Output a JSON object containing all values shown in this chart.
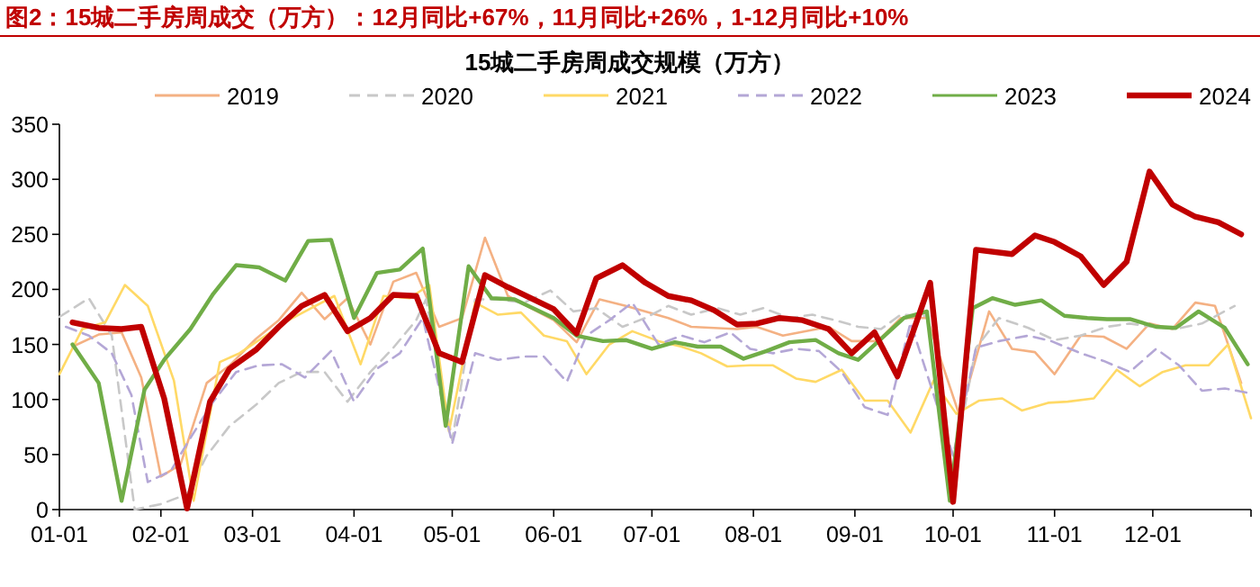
{
  "chart_data": {
    "type": "line",
    "title": "图2：15城二手房周成交（万方）：12月同比+67%，11月同比+26%，1-12月同比+10%",
    "subtitle": "15城二手房周成交规模（万方）",
    "xlim": [
      "--01-01",
      "--12-31"
    ],
    "ylim": [
      0,
      350
    ],
    "yticks": [
      0,
      50,
      100,
      150,
      200,
      250,
      300,
      350
    ],
    "xticks": [
      {
        "value": "--01-01",
        "label": "01-01"
      },
      {
        "value": "--02-01",
        "label": "02-01"
      },
      {
        "value": "--03-01",
        "label": "03-01"
      },
      {
        "value": "--04-01",
        "label": "04-01"
      },
      {
        "value": "--05-01",
        "label": "05-01"
      },
      {
        "value": "--06-01",
        "label": "06-01"
      },
      {
        "value": "--07-01",
        "label": "07-01"
      },
      {
        "value": "--08-01",
        "label": "08-01"
      },
      {
        "value": "--09-01",
        "label": "09-01"
      },
      {
        "value": "--10-01",
        "label": "10-01"
      },
      {
        "value": "--11-01",
        "label": "11-01"
      },
      {
        "value": "--12-01",
        "label": "12-01"
      },
      {
        "value": "--12-31",
        "label": null
      }
    ],
    "legend": "top",
    "grid": false,
    "series": [
      {
        "name": "2019",
        "color": "#f4b183",
        "line_style": "solid",
        "x": [
          "--01-05",
          "--01-13",
          "--01-20",
          "--01-26",
          "--02-01",
          "--02-07",
          "--02-15",
          "--02-22",
          "--03-02",
          "--03-09",
          "--03-16",
          "--03-23",
          "--03-30",
          "--04-06",
          "--04-13",
          "--04-20",
          "--04-27",
          "--05-04",
          "--05-11",
          "--05-18",
          "--06-01",
          "--06-08",
          "--06-15",
          "--06-23",
          "--07-06",
          "--07-13",
          "--07-27",
          "--08-02",
          "--08-10",
          "--08-24",
          "--08-31",
          "--09-08",
          "--09-15",
          "--09-23",
          "--10-03",
          "--10-12",
          "--10-19",
          "--10-26",
          "--11-01",
          "--11-09",
          "--11-16",
          "--11-23",
          "--11-30",
          "--12-07",
          "--12-14",
          "--12-20",
          "--12-28"
        ],
        "values": [
          148,
          159,
          161,
          120,
          30,
          41,
          115,
          131,
          155,
          172,
          197,
          173,
          192,
          150,
          207,
          215,
          166,
          174,
          247,
          194,
          172,
          152,
          191,
          185,
          174,
          166,
          164,
          166,
          158,
          166,
          153,
          153,
          174,
          174,
          85,
          180,
          146,
          143,
          123,
          158,
          157,
          146,
          169,
          164,
          188,
          185,
          115
        ]
      },
      {
        "name": "2020",
        "color": "#c8c8c8",
        "line_style": "dashed",
        "x": [
          "--01-01",
          "--01-10",
          "--01-17",
          "--01-24",
          "--02-01",
          "--02-09",
          "--02-15",
          "--02-22",
          "--03-02",
          "--03-09",
          "--03-16",
          "--03-23",
          "--03-30",
          "--04-06",
          "--04-13",
          "--04-20",
          "--04-23",
          "--05-01",
          "--05-08",
          "--05-15",
          "--05-23",
          "--05-31",
          "--06-07",
          "--06-14",
          "--06-22",
          "--06-29",
          "--07-06",
          "--07-13",
          "--07-21",
          "--07-28",
          "--08-04",
          "--08-12",
          "--08-19",
          "--08-26",
          "--09-02",
          "--09-09",
          "--09-15",
          "--09-23",
          "--09-30",
          "--10-08",
          "--10-15",
          "--10-24",
          "--11-01",
          "--11-09",
          "--11-17",
          "--11-24",
          "--12-01",
          "--12-08",
          "--12-16",
          "--12-26"
        ],
        "values": [
          175,
          192,
          158,
          0,
          5,
          14,
          49,
          76,
          95,
          115,
          125,
          125,
          98,
          125,
          147,
          172,
          191,
          63,
          191,
          191,
          188,
          199,
          180,
          183,
          166,
          174,
          185,
          177,
          183,
          177,
          183,
          174,
          177,
          172,
          166,
          164,
          177,
          176,
          22,
          147,
          174,
          165,
          154,
          158,
          166,
          169,
          166,
          164,
          169,
          185
        ]
      },
      {
        "name": "2021",
        "color": "#ffd966",
        "line_style": "solid",
        "x": [
          "--01-01",
          "--01-08",
          "--01-15",
          "--01-21",
          "--01-28",
          "--02-05",
          "--02-11",
          "--02-19",
          "--02-25",
          "--03-05",
          "--03-12",
          "--03-19",
          "--03-26",
          "--04-03",
          "--04-10",
          "--04-18",
          "--04-24",
          "--04-30",
          "--05-08",
          "--05-15",
          "--05-22",
          "--05-29",
          "--06-05",
          "--06-11",
          "--06-18",
          "--06-25",
          "--07-03",
          "--07-10",
          "--07-16",
          "--07-24",
          "--07-31",
          "--08-07",
          "--08-14",
          "--08-20",
          "--08-28",
          "--09-04",
          "--09-11",
          "--09-18",
          "--09-25",
          "--10-02",
          "--10-09",
          "--10-16",
          "--10-22",
          "--10-30",
          "--11-05",
          "--11-13",
          "--11-20",
          "--11-27",
          "--12-04",
          "--12-11",
          "--12-18",
          "--12-24",
          "--12-31"
        ],
        "values": [
          123,
          164,
          170,
          204,
          185,
          117,
          8,
          134,
          142,
          158,
          172,
          183,
          194,
          132,
          194,
          192,
          204,
          71,
          188,
          177,
          179,
          158,
          153,
          123,
          150,
          162,
          153,
          148,
          142,
          130,
          131,
          131,
          119,
          116,
          127,
          99,
          99,
          70,
          117,
          87,
          99,
          101,
          90,
          97,
          98,
          101,
          127,
          112,
          125,
          131,
          131,
          150,
          83
        ]
      },
      {
        "name": "2022",
        "color": "#b4a7d6",
        "line_style": "dashed",
        "x": [
          "--01-03",
          "--01-10",
          "--01-17",
          "--01-23",
          "--01-28",
          "--02-04",
          "--02-10",
          "--02-17",
          "--02-24",
          "--03-03",
          "--03-10",
          "--03-17",
          "--03-25",
          "--04-01",
          "--04-08",
          "--04-15",
          "--04-22",
          "--05-01",
          "--05-08",
          "--05-15",
          "--05-23",
          "--05-29",
          "--06-05",
          "--06-11",
          "--06-18",
          "--06-25",
          "--07-03",
          "--07-10",
          "--07-17",
          "--07-25",
          "--07-31",
          "--08-07",
          "--08-14",
          "--08-21",
          "--08-28",
          "--09-04",
          "--09-11",
          "--09-18",
          "--10-01",
          "--10-08",
          "--10-15",
          "--10-24",
          "--10-31",
          "--11-09",
          "--11-16",
          "--11-24",
          "--12-02",
          "--12-09",
          "--12-16",
          "--12-23",
          "--12-30"
        ],
        "values": [
          166,
          158,
          142,
          104,
          25,
          35,
          65,
          98,
          125,
          131,
          132,
          120,
          144,
          98,
          128,
          142,
          174,
          60,
          142,
          136,
          139,
          139,
          116,
          158,
          172,
          188,
          150,
          158,
          152,
          161,
          146,
          142,
          146,
          144,
          125,
          93,
          86,
          170,
          49,
          147,
          153,
          158,
          153,
          142,
          135,
          125,
          146,
          131,
          108,
          110,
          106
        ]
      },
      {
        "name": "2023",
        "color": "#70ad47",
        "line_style": "solid",
        "x": [
          "--01-05",
          "--01-13",
          "--01-20",
          "--01-27",
          "--02-02",
          "--02-10",
          "--02-17",
          "--02-24",
          "--03-03",
          "--03-11",
          "--03-18",
          "--03-25",
          "--04-01",
          "--04-08",
          "--04-15",
          "--04-22",
          "--04-29",
          "--05-06",
          "--05-13",
          "--05-20",
          "--06-01",
          "--06-08",
          "--06-16",
          "--06-23",
          "--07-01",
          "--07-08",
          "--07-15",
          "--07-22",
          "--07-29",
          "--08-05",
          "--08-12",
          "--08-20",
          "--08-27",
          "--09-02",
          "--09-09",
          "--09-16",
          "--09-23",
          "--09-30",
          "--10-07",
          "--10-13",
          "--10-20",
          "--10-28",
          "--11-04",
          "--11-11",
          "--11-17",
          "--11-24",
          "--12-02",
          "--12-08",
          "--12-15",
          "--12-23",
          "--12-30"
        ],
        "values": [
          150,
          115,
          8,
          109,
          136,
          164,
          196,
          222,
          220,
          208,
          244,
          245,
          174,
          215,
          218,
          237,
          76,
          221,
          192,
          191,
          174,
          158,
          153,
          154,
          146,
          152,
          148,
          148,
          137,
          144,
          152,
          154,
          142,
          136,
          155,
          174,
          180,
          8,
          183,
          192,
          186,
          190,
          176,
          174,
          173,
          173,
          166,
          165,
          180,
          165,
          132
        ]
      },
      {
        "name": "2024",
        "color": "#c00000",
        "line_style": "solid",
        "x": [
          "--01-05",
          "--01-13",
          "--01-20",
          "--01-26",
          "--02-02",
          "--02-09",
          "--02-16",
          "--02-22",
          "--03-02",
          "--03-09",
          "--03-16",
          "--03-23",
          "--03-30",
          "--04-06",
          "--04-13",
          "--04-20",
          "--04-27",
          "--05-04",
          "--05-11",
          "--05-18",
          "--05-25",
          "--06-01",
          "--06-08",
          "--06-14",
          "--06-22",
          "--06-29",
          "--07-06",
          "--07-13",
          "--07-20",
          "--07-27",
          "--08-02",
          "--08-09",
          "--08-16",
          "--08-24",
          "--08-31",
          "--09-07",
          "--09-14",
          "--09-24",
          "--10-01",
          "--10-08",
          "--10-19",
          "--10-26",
          "--11-01",
          "--11-09",
          "--11-16",
          "--11-23",
          "--11-30",
          "--12-07",
          "--12-14",
          "--12-21",
          "--12-28"
        ],
        "values": [
          170,
          165,
          164,
          166,
          101,
          1,
          98,
          128,
          145,
          166,
          185,
          195,
          162,
          174,
          195,
          194,
          142,
          134,
          213,
          202,
          192,
          182,
          160,
          210,
          222,
          206,
          194,
          190,
          181,
          168,
          169,
          174,
          172,
          164,
          142,
          161,
          121,
          206,
          7,
          236,
          232,
          249,
          243,
          230,
          204,
          225,
          307,
          277,
          266,
          261,
          250
        ]
      }
    ]
  }
}
